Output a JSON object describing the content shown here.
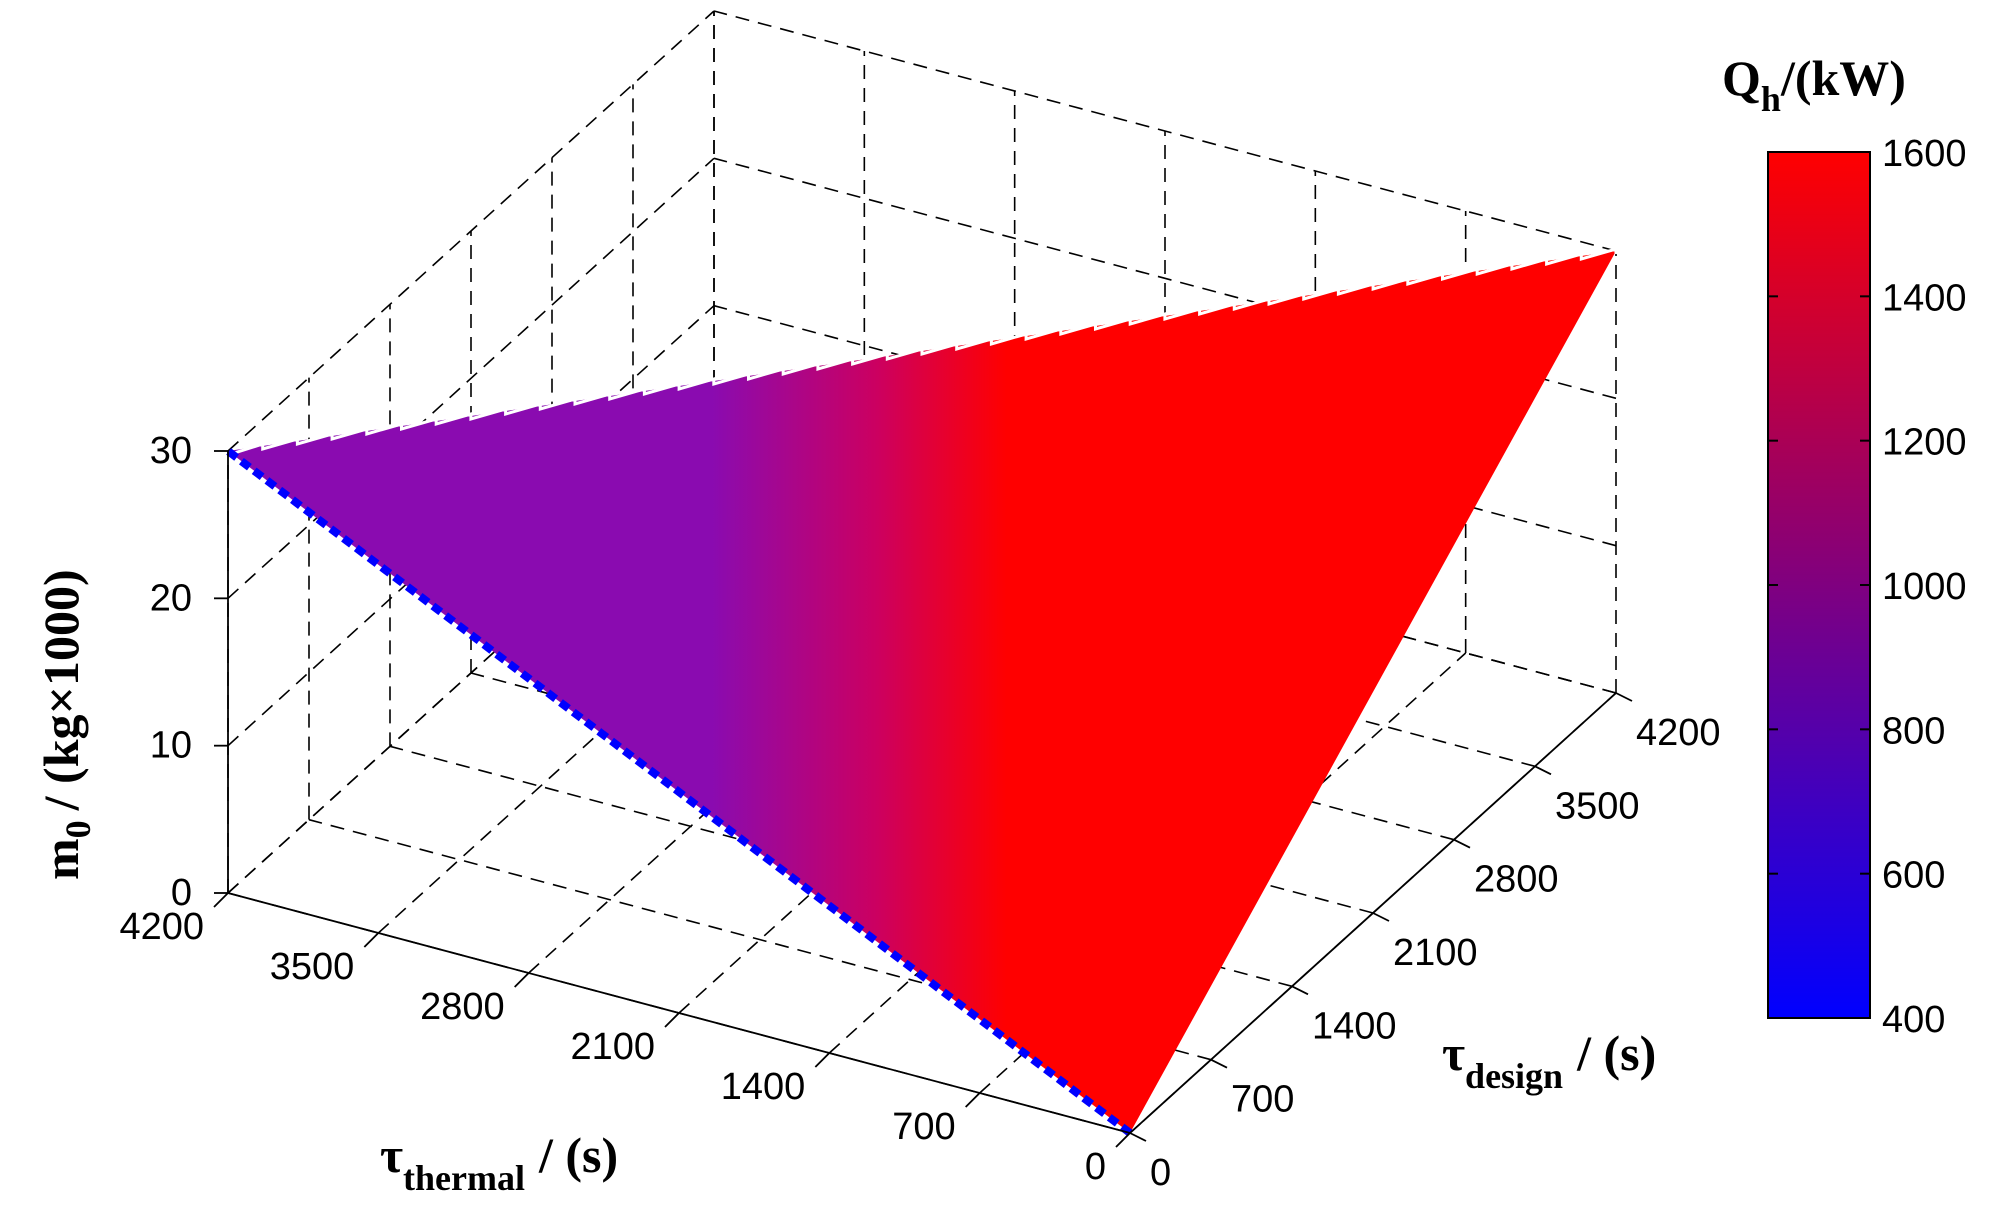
{
  "chart_data": {
    "type": "surface3d",
    "axes": {
      "x": {
        "label_main": "τ",
        "label_sub": "thermal",
        "label_unit": "/ (s)",
        "ticks": [
          "0",
          "700",
          "1400",
          "2100",
          "2800",
          "3500",
          "4200"
        ],
        "values": [
          0,
          700,
          1400,
          2100,
          2800,
          3500,
          4200
        ],
        "range": [
          0,
          4200
        ]
      },
      "y": {
        "label_main": "τ",
        "label_sub": "design",
        "label_unit": "/ (s)",
        "ticks": [
          "0",
          "700",
          "1400",
          "2100",
          "2800",
          "3500",
          "4200"
        ],
        "values": [
          0,
          700,
          1400,
          2100,
          2800,
          3500,
          4200
        ],
        "range": [
          0,
          4200
        ]
      },
      "z": {
        "label_main": "m",
        "label_sub": "0",
        "label_unit": "/ (kg×1000)",
        "ticks": [
          "0",
          "10",
          "20",
          "30"
        ],
        "values": [
          0,
          10,
          20,
          30
        ],
        "range": [
          0,
          30
        ]
      }
    },
    "grid": true,
    "colorbar": {
      "label_main": "Q",
      "label_sub": "h",
      "label_unit": "/(kW)",
      "ticks": [
        "400",
        "600",
        "800",
        "1000",
        "1200",
        "1400",
        "1600"
      ],
      "values": [
        400,
        600,
        800,
        1000,
        1200,
        1400,
        1600
      ],
      "range": [
        400,
        1600
      ],
      "colors": [
        "#0000ff",
        "#ff0000"
      ]
    },
    "surface": {
      "description_points": [
        {
          "tau_thermal": 0,
          "tau_design": 0,
          "m0": 0,
          "Qh": 400
        },
        {
          "tau_thermal": 4200,
          "tau_design": 0,
          "m0": 30,
          "Qh": 900
        },
        {
          "tau_thermal": 0,
          "tau_design": 4200,
          "m0": 30,
          "Qh": 1600
        }
      ],
      "edge_line_color": "#0000ff"
    }
  }
}
